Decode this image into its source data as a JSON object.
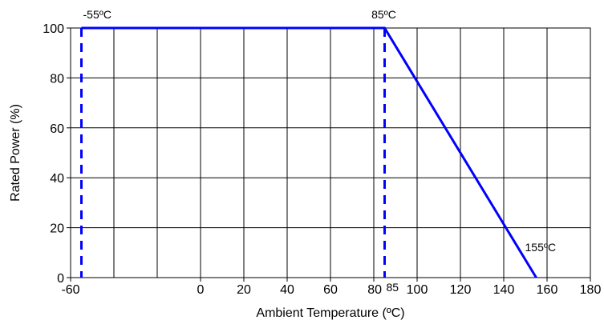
{
  "chart_data": {
    "type": "line",
    "title": "",
    "xlabel": "Ambient Temperature (ºC)",
    "ylabel": "Rated Power (%)",
    "xlim": [
      -60,
      180
    ],
    "ylim": [
      0,
      100
    ],
    "x_ticks": [
      -60,
      0,
      20,
      40,
      60,
      80,
      100,
      120,
      140,
      160,
      180
    ],
    "x_tick_labels": [
      "-60",
      "0",
      "20",
      "40",
      "60",
      "80",
      "100",
      "120",
      "140",
      "160",
      "180"
    ],
    "x_grid": [
      -60,
      -40,
      -20,
      0,
      20,
      40,
      60,
      80,
      100,
      120,
      140,
      160,
      180
    ],
    "y_ticks": [
      0,
      20,
      40,
      60,
      80,
      100
    ],
    "y_tick_labels": [
      "0",
      "20",
      "40",
      "60",
      "80",
      "100"
    ],
    "grid": true,
    "series": [
      {
        "x": [
          -55,
          85,
          155
        ],
        "y": [
          100,
          100,
          0
        ],
        "color": "#0000ff"
      }
    ],
    "reference_lines": [
      {
        "x": -55,
        "style": "dashed",
        "color": "#0000ff"
      },
      {
        "x": 85,
        "style": "dashed",
        "color": "#0000ff"
      }
    ],
    "annotations": [
      {
        "text": "-55ºC",
        "x": -55,
        "y": 100
      },
      {
        "text": "85ºC",
        "x": 85,
        "y": 100
      },
      {
        "text": "155ºC",
        "x": 155,
        "y": 0
      },
      {
        "text": "85",
        "x": 85,
        "y": 0
      }
    ]
  }
}
